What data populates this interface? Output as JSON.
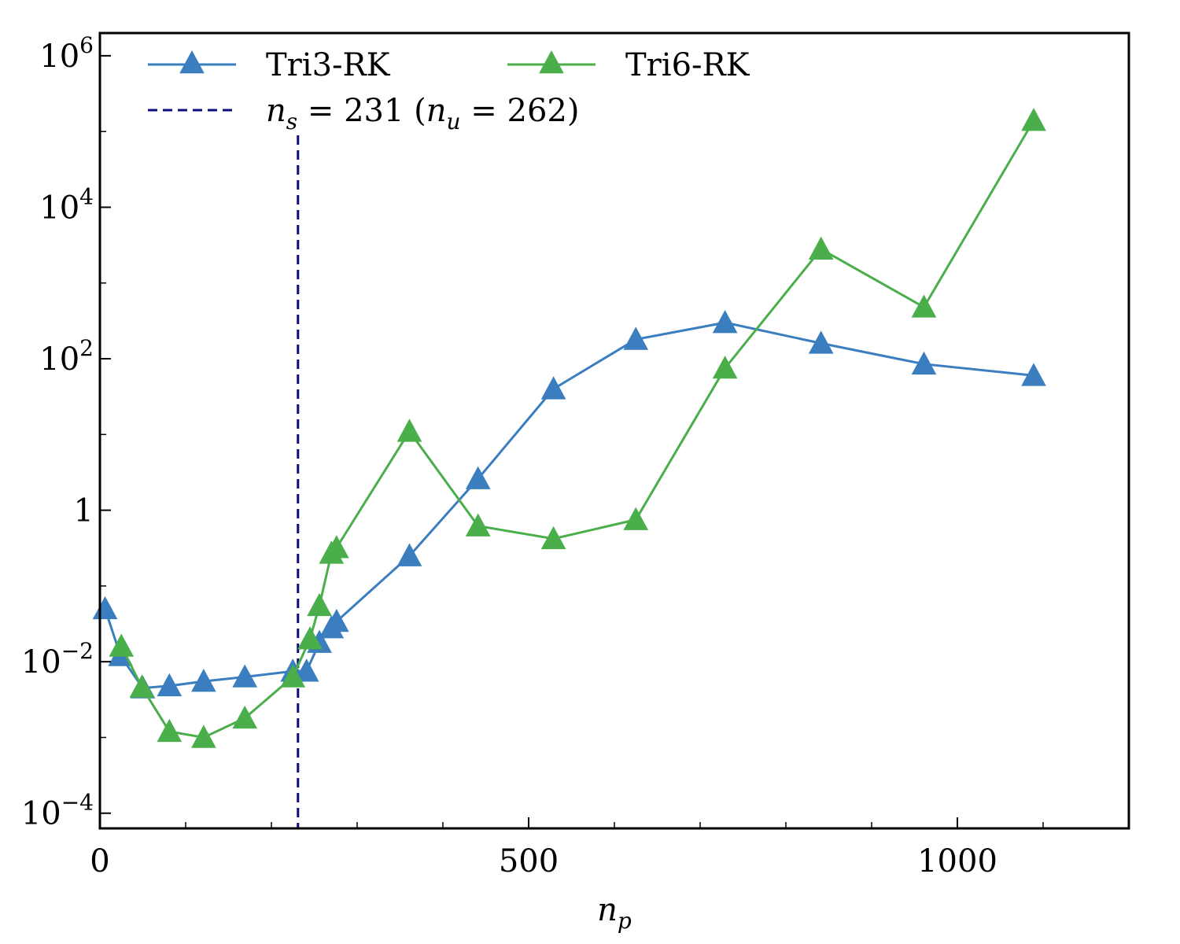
{
  "chart_data": {
    "type": "line",
    "xlabel": "n",
    "xlabel_sub": "p",
    "xlim": [
      0,
      1200
    ],
    "ylim_log10": [
      -4.2,
      6.3
    ],
    "yscale": "log",
    "x_ticks": [
      {
        "value": 0,
        "label": "0"
      },
      {
        "value": 500,
        "label": "500"
      },
      {
        "value": 1000,
        "label": "1000"
      }
    ],
    "y_ticks": [
      {
        "exp": 6,
        "base": "10",
        "sup": "6"
      },
      {
        "exp": 4,
        "base": "10",
        "sup": "4"
      },
      {
        "exp": 2,
        "base": "10",
        "sup": "2"
      },
      {
        "exp": 0,
        "base": "1",
        "sup": ""
      },
      {
        "exp": -2,
        "base": "10",
        "sup": "−2"
      },
      {
        "exp": -4,
        "base": "10",
        "sup": "−4"
      }
    ],
    "series": [
      {
        "name": "Tri3-RK",
        "color": "#3a7ebf",
        "marker": "triangle-up",
        "x": [
          6,
          24,
          50,
          81,
          121,
          169,
          225,
          241,
          256,
          270,
          276,
          361,
          441,
          529,
          625,
          729,
          841,
          961,
          1089
        ],
        "y": [
          0.05,
          0.012,
          0.0045,
          0.0048,
          0.0055,
          0.0063,
          0.0075,
          0.0075,
          0.018,
          0.028,
          0.034,
          0.25,
          2.6,
          40,
          180,
          300,
          160,
          85,
          60
        ]
      },
      {
        "name": "Tri6-RK",
        "color": "#4aae4a",
        "marker": "triangle-up",
        "x": [
          25,
          49,
          81,
          121,
          169,
          225,
          245,
          256,
          270,
          276,
          361,
          441,
          529,
          625,
          729,
          841,
          961,
          1089
        ],
        "y": [
          0.016,
          0.0046,
          0.0012,
          0.001,
          0.0018,
          0.0063,
          0.02,
          0.055,
          0.27,
          0.32,
          11,
          0.62,
          0.42,
          0.75,
          75,
          2800,
          480,
          140000
        ]
      }
    ],
    "vline": {
      "x": 231,
      "color": "#0d0d80",
      "style": "dashed"
    },
    "legend": {
      "placement": "top-left",
      "entries": [
        {
          "label": "Tri3-RK",
          "series": 0
        },
        {
          "label": "Tri6-RK",
          "series": 1
        },
        {
          "label_parts": [
            "n",
            "s",
            " = 231 (",
            "n",
            "u",
            " = 262)"
          ],
          "kind": "vline"
        }
      ]
    }
  }
}
